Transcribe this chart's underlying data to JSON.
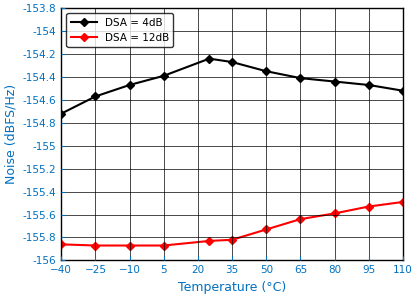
{
  "xlabel": "Temperature (°C)",
  "ylabel": "Noise (dBFS/Hz)",
  "xlim": [
    -40,
    110
  ],
  "ylim": [
    -156,
    -153.8
  ],
  "xticks": [
    -40,
    -25,
    -10,
    5,
    20,
    35,
    50,
    65,
    80,
    95,
    110
  ],
  "ytick_values": [
    -153.8,
    -154,
    -154.2,
    -154.4,
    -154.6,
    -154.8,
    -155,
    -155.2,
    -155.4,
    -155.6,
    -155.8,
    -156
  ],
  "ytick_labels": [
    "-153.8",
    "-154",
    "-154.2",
    "-154.4",
    "-154.6",
    "-154.8",
    "-155",
    "-155.2",
    "-155.4",
    "-155.6",
    "-155.8",
    "-156"
  ],
  "series": [
    {
      "label": "DSA = 4dB",
      "color": "#000000",
      "marker": "D",
      "markersize": 4,
      "linewidth": 1.5,
      "x": [
        -40,
        -25,
        -10,
        5,
        25,
        35,
        50,
        65,
        80,
        95,
        110
      ],
      "y": [
        -154.72,
        -154.57,
        -154.47,
        -154.39,
        -154.24,
        -154.27,
        -154.35,
        -154.41,
        -154.44,
        -154.47,
        -154.52
      ]
    },
    {
      "label": "DSA = 12dB",
      "color": "#ff0000",
      "marker": "D",
      "markersize": 4,
      "linewidth": 1.5,
      "x": [
        -40,
        -25,
        -10,
        5,
        25,
        35,
        50,
        65,
        80,
        95,
        110
      ],
      "y": [
        -155.86,
        -155.87,
        -155.87,
        -155.87,
        -155.83,
        -155.82,
        -155.73,
        -155.64,
        -155.59,
        -155.53,
        -155.49
      ]
    }
  ],
  "legend_loc": "upper left",
  "grid_color": "#000000",
  "background_color": "#ffffff",
  "axis_label_color": "#0070c0",
  "tick_label_color": "#0070c0",
  "xlabel_fontsize": 9,
  "ylabel_fontsize": 9,
  "tick_fontsize": 7.5
}
